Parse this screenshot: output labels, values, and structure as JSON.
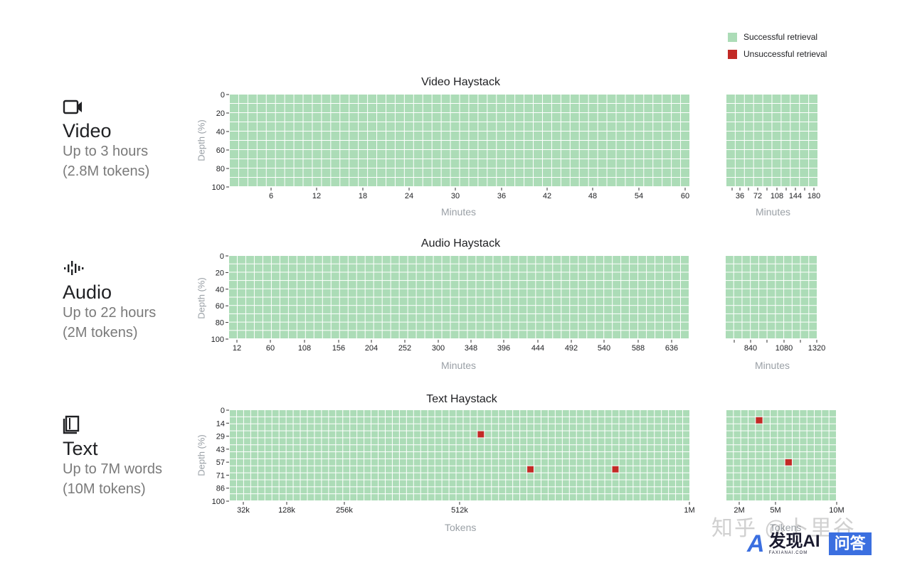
{
  "legend": {
    "success_label": "Successful retrieval",
    "fail_label": "Unsuccessful retrieval",
    "success_color": "#acdcb7",
    "fail_color": "#c22a26"
  },
  "modalities": [
    {
      "name": "Video",
      "line1": "Up to 3 hours",
      "line2": "(2.8M tokens)",
      "icon": "video-camera-icon"
    },
    {
      "name": "Audio",
      "line1": "Up to 22 hours",
      "line2": "(2M tokens)",
      "icon": "audio-waveform-icon"
    },
    {
      "name": "Text",
      "line1": "Up to 7M words",
      "line2": "(10M tokens)",
      "icon": "book-icon"
    }
  ],
  "chart_data": [
    {
      "type": "heatmap",
      "title": "Video Haystack",
      "xlabel": "Minutes",
      "ylabel": "Depth (%)",
      "y_ticks": [
        "0",
        "20",
        "40",
        "60",
        "80",
        "100"
      ],
      "main": {
        "x_ticks": [
          "6",
          "12",
          "18",
          "24",
          "30",
          "36",
          "42",
          "48",
          "54",
          "60"
        ],
        "cols": 50,
        "rows": 10,
        "failures": []
      },
      "extended": {
        "x_ticks": [
          "36",
          "72",
          "108",
          "144",
          "180"
        ],
        "cols": 10,
        "rows": 10,
        "failures": []
      }
    },
    {
      "type": "heatmap",
      "title": "Audio Haystack",
      "xlabel": "Minutes",
      "ylabel": "Depth (%)",
      "y_ticks": [
        "0",
        "20",
        "40",
        "60",
        "80",
        "100"
      ],
      "main": {
        "x_ticks": [
          "12",
          "60",
          "108",
          "156",
          "204",
          "252",
          "300",
          "348",
          "396",
          "444",
          "492",
          "540",
          "588",
          "636"
        ],
        "cols": 54,
        "rows": 10,
        "failures": []
      },
      "extended": {
        "x_ticks": [
          "840",
          "1080",
          "1320"
        ],
        "cols": 11,
        "rows": 10,
        "failures": []
      }
    },
    {
      "type": "heatmap",
      "title": "Text Haystack",
      "xlabel": "Tokens",
      "ylabel": "Depth  (%)",
      "y_ticks": [
        "0",
        "14",
        "29",
        "43",
        "57",
        "71",
        "86",
        "100"
      ],
      "main": {
        "x_ticks": [
          "32k",
          "128k",
          "256k",
          "512k",
          "1M"
        ],
        "cols": 65,
        "rows": 13,
        "failures": [
          [
            35,
            3
          ],
          [
            42,
            8
          ],
          [
            54,
            8
          ]
        ]
      },
      "extended": {
        "x_ticks": [
          "2M",
          "5M",
          "10M"
        ],
        "cols": 15,
        "rows": 13,
        "failures": [
          [
            4,
            1
          ],
          [
            8,
            7
          ]
        ]
      }
    }
  ],
  "watermark": {
    "text": "知乎 @卜里谷",
    "logo_name": "发现AI",
    "logo_sub": "FAXIANAI.COM",
    "badge": "问答"
  }
}
